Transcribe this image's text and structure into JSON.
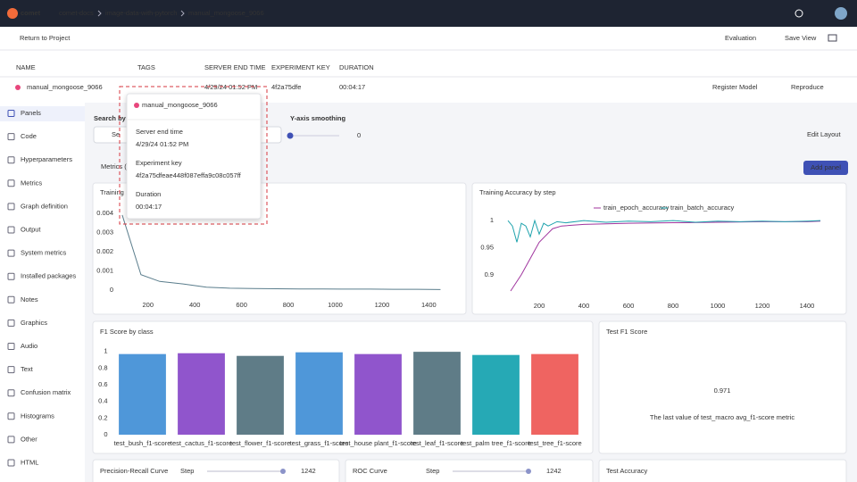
{
  "topbar": {
    "logo": "comet",
    "breadcrumb": [
      "comet-docs",
      "image-data-with-pytorch",
      "manual_mongoose_9066"
    ]
  },
  "toolbar": {
    "back": "Return to Project",
    "view": "Evaluation",
    "save": "Save View"
  },
  "table": {
    "headers": [
      "NAME",
      "TAGS",
      "SERVER END TIME",
      "EXPERIMENT KEY",
      "DURATION"
    ],
    "row": {
      "name": "manual_mongoose_9066",
      "server_end_time": "4/29/24 01:52 PM",
      "experiment_key": "4f2a75dfe",
      "duration": "00:04:17",
      "register": "Register Model",
      "reproduce": "Reproduce"
    }
  },
  "popup": {
    "name": "manual_mongoose_9066",
    "fields": [
      {
        "label": "Server end time",
        "value": "4/29/24 01:52 PM"
      },
      {
        "label": "Experiment key",
        "value": "4f2a75dfeae448f087effa9c08c057ff"
      },
      {
        "label": "Duration",
        "value": "00:04:17"
      }
    ]
  },
  "sidebar": [
    "Panels",
    "Code",
    "Hyperparameters",
    "Metrics",
    "Graph definition",
    "Output",
    "System metrics",
    "Installed packages",
    "Notes",
    "Graphics",
    "Audio",
    "Text",
    "Confusion matrix",
    "Histograms",
    "Other",
    "HTML"
  ],
  "controls": {
    "search_label": "Search by n",
    "search_placeholder": "Se",
    "smoothing_label": "Y-axis smoothing",
    "smoothing_value": 0,
    "edit_layout": "Edit Layout",
    "section": "Metrics (",
    "add_panel": "Add panel"
  },
  "charts": [
    {
      "type": "line",
      "title": "Training L",
      "xlim": [
        75,
        1475
      ],
      "ylim": [
        0,
        0.0045
      ],
      "xticks": [
        200,
        400,
        600,
        800,
        1000,
        1200,
        1400
      ],
      "yticks": [
        0,
        0.001,
        0.002,
        0.003,
        0.004
      ],
      "grid": false,
      "series": [
        {
          "color": "#5a7d8c",
          "x": [
            90,
            170,
            250,
            350,
            450,
            550,
            650,
            750,
            850,
            950,
            1050,
            1150,
            1250,
            1350,
            1450
          ],
          "values": [
            0.0039,
            0.0008,
            0.00045,
            0.00032,
            0.00015,
            0.0001,
            8e-05,
            7e-05,
            6e-05,
            6e-05,
            5e-05,
            5e-05,
            4e-05,
            4e-05,
            3e-05
          ]
        }
      ]
    },
    {
      "type": "line",
      "title": "Training Accuracy by step",
      "xlim": [
        20,
        1500
      ],
      "ylim": [
        0.87,
        1.02
      ],
      "xticks": [
        200,
        400,
        600,
        800,
        1000,
        1200,
        1400
      ],
      "yticks": [
        0.9,
        0.95,
        1
      ],
      "grid": false,
      "series": [
        {
          "name": "train_epoch_accuracy",
          "color": "#a0359e",
          "x": [
            72,
            120,
            160,
            200,
            224,
            260,
            300,
            400,
            600,
            800,
            1000,
            1200,
            1400,
            1460
          ],
          "values": [
            0.87,
            0.9,
            0.93,
            0.96,
            0.97,
            0.985,
            0.99,
            0.993,
            0.995,
            0.996,
            0.997,
            0.998,
            0.998,
            0.999
          ]
        },
        {
          "name": "train_batch_accuracy",
          "color": "#1fa3ad",
          "x": [
            60,
            80,
            100,
            120,
            140,
            160,
            180,
            200,
            220,
            240,
            280,
            320,
            400,
            500,
            600,
            700,
            800,
            900,
            1000,
            1100,
            1200,
            1300,
            1400,
            1460
          ],
          "values": [
            1,
            0.99,
            0.96,
            0.995,
            0.99,
            0.97,
            1,
            0.975,
            0.995,
            0.99,
            0.998,
            0.996,
            1,
            0.997,
            0.999,
            0.998,
            1,
            0.997,
            0.999,
            0.998,
            0.999,
            0.998,
            0.999,
            1
          ]
        }
      ]
    },
    {
      "type": "bar",
      "title": "F1 Score by class",
      "ylim": [
        0,
        1.05
      ],
      "yticks": [
        0,
        0.2,
        0.4,
        0.6,
        0.8,
        1
      ],
      "grid": false,
      "categories": [
        "test_bush_f1-score",
        "test_cactus_f1-score",
        "test_flower_f1-score",
        "test_grass_f1-score",
        "test_house plant_f1-score",
        "test_leaf_f1-score",
        "test_palm tree_f1-score",
        "test_tree_f1-score"
      ],
      "values": [
        0.968,
        0.978,
        0.946,
        0.989,
        0.968,
        0.995,
        0.957,
        0.968
      ],
      "colors": [
        "#4f97d9",
        "#9055cc",
        "#5f7c87",
        "#4f97d9",
        "#9055cc",
        "#5f7c87",
        "#26a9b5",
        "#ef6461"
      ]
    }
  ],
  "test_f1": {
    "title": "Test F1 Score",
    "value": 0.971,
    "caption": "The last value of test_macro avg_f1-score metric"
  },
  "bottom": [
    {
      "title": "Precision-Recall Curve",
      "step_label": "Step",
      "step": 1242
    },
    {
      "title": "ROC Curve",
      "step_label": "Step",
      "step": 1242
    },
    {
      "title": "Test Accuracy"
    }
  ]
}
